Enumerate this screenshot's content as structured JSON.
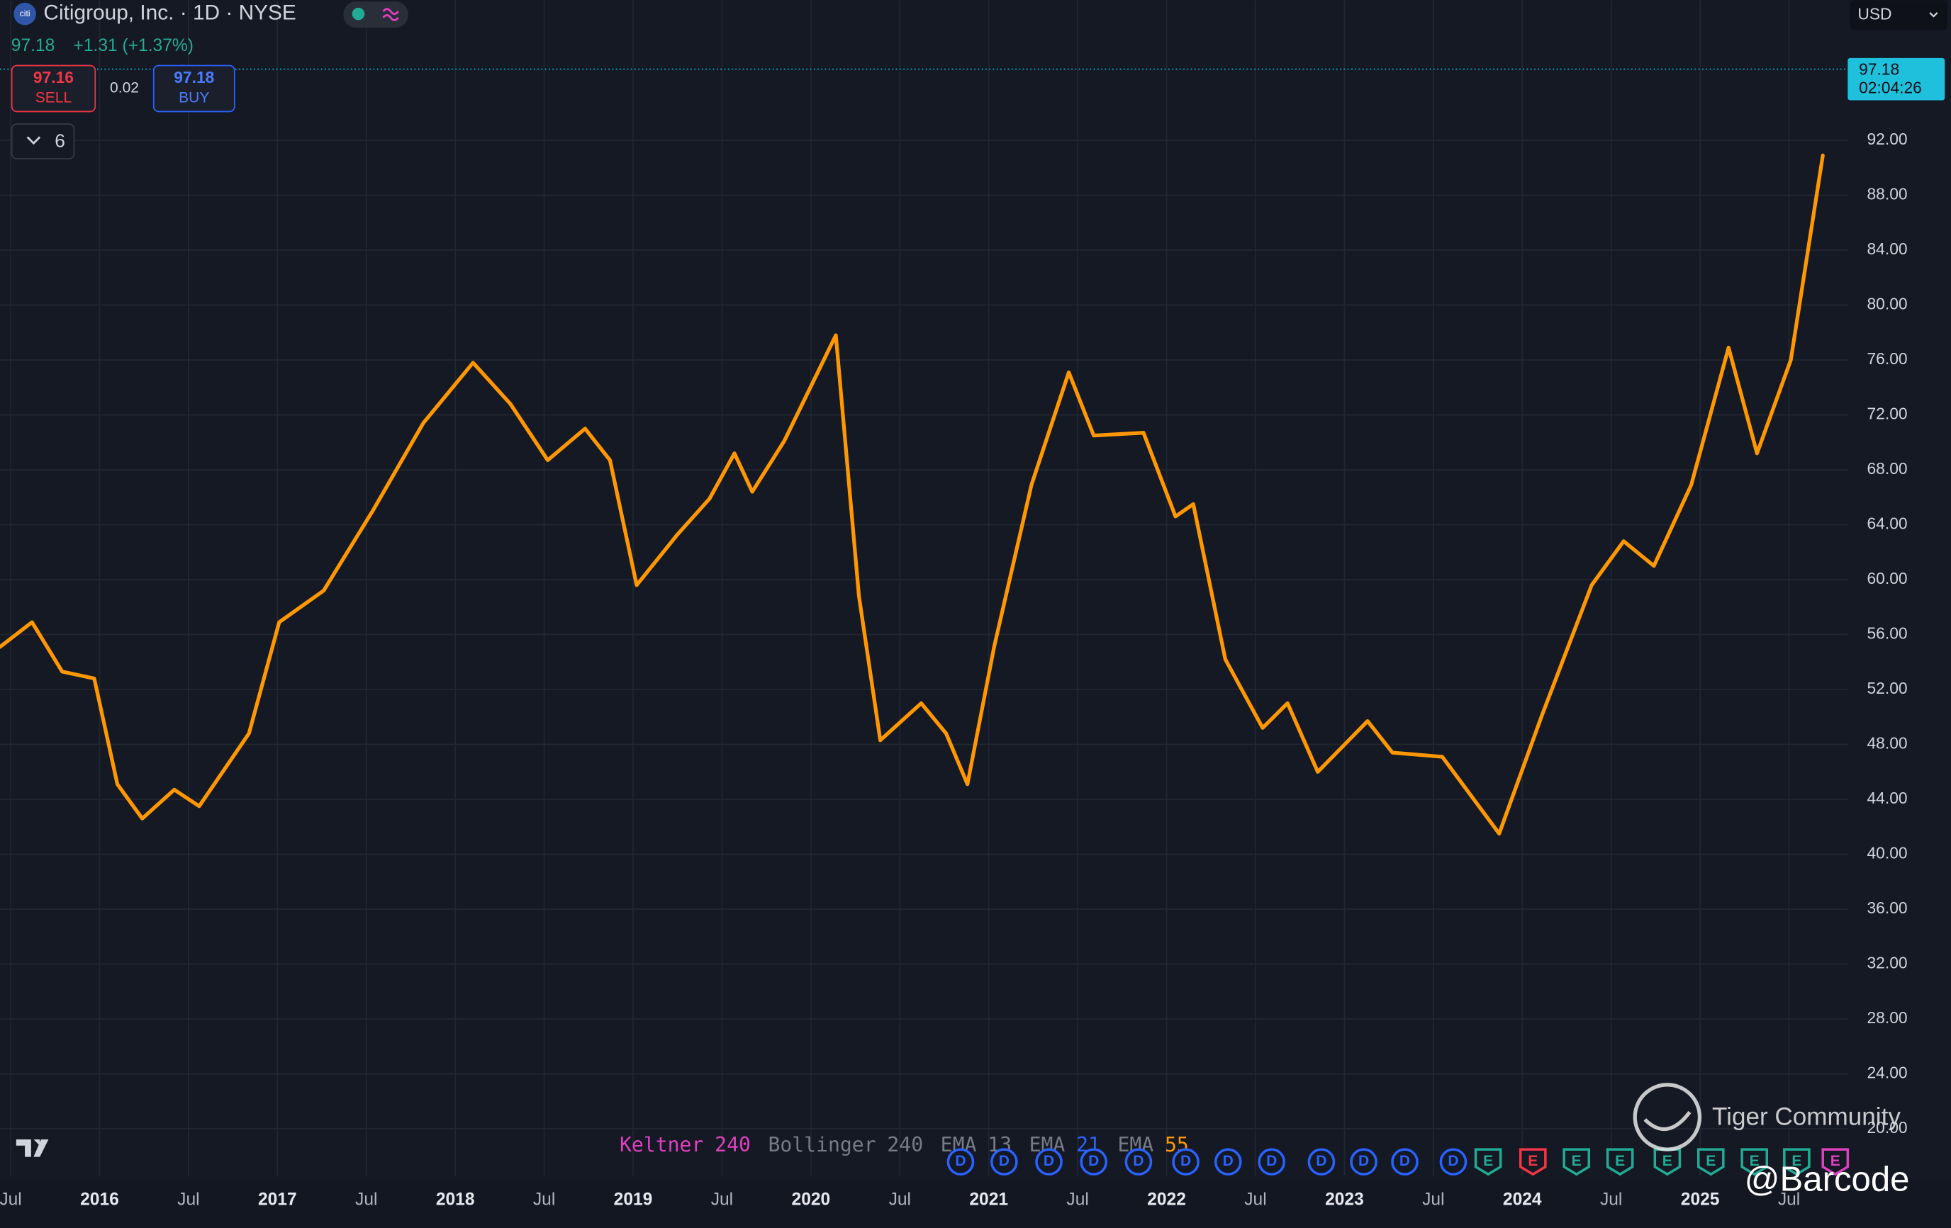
{
  "header": {
    "logo": "citi",
    "symbol": "Citigroup, Inc. · 1D · NYSE",
    "quote": "97.18",
    "change": "+1.31 (+1.37%)",
    "sell_price": "97.16",
    "sell_label": "SELL",
    "spread": "0.02",
    "buy_price": "97.18",
    "buy_label": "BUY",
    "indicator_count": "6",
    "currency": "USD"
  },
  "chart_data": {
    "type": "line",
    "x": [
      2015.44,
      2015.62,
      2015.79,
      2015.97,
      2016.1,
      2016.24,
      2016.42,
      2016.56,
      2016.84,
      2017.01,
      2017.26,
      2017.54,
      2017.82,
      2018.1,
      2018.31,
      2018.52,
      2018.73,
      2018.87,
      2019.02,
      2019.25,
      2019.43,
      2019.57,
      2019.67,
      2019.85,
      2020.14,
      2020.27,
      2020.39,
      2020.62,
      2020.76,
      2020.88,
      2021.03,
      2021.24,
      2021.45,
      2021.59,
      2021.87,
      2022.05,
      2022.15,
      2022.33,
      2022.54,
      2022.68,
      2022.85,
      2023.13,
      2023.27,
      2023.55,
      2023.87,
      2024.11,
      2024.39,
      2024.57,
      2024.74,
      2024.95,
      2025.16,
      2025.32,
      2025.51,
      2025.69
    ],
    "series": [
      {
        "color": "#ff9800",
        "values": [
          55.1,
          56.9,
          53.3,
          52.8,
          45.1,
          42.6,
          44.7,
          43.5,
          48.8,
          56.9,
          59.2,
          65.1,
          71.4,
          75.8,
          72.8,
          68.7,
          71.0,
          68.7,
          59.6,
          63.3,
          65.9,
          69.2,
          66.4,
          70.1,
          77.8,
          58.8,
          48.3,
          51.0,
          48.8,
          45.1,
          55.1,
          66.9,
          75.1,
          70.5,
          70.7,
          64.6,
          65.5,
          54.2,
          49.2,
          51.0,
          46.0,
          49.7,
          47.4,
          47.1,
          41.5,
          50.1,
          59.6,
          62.8,
          61.0,
          66.9,
          76.9,
          69.2,
          76.0,
          90.9
        ]
      }
    ],
    "xlim": [
      2015.44,
      2025.83
    ],
    "ylim": [
      16.6,
      102.2
    ],
    "xticks": [
      {
        "value": 2015.5,
        "label": "Jul"
      },
      2016,
      {
        "value": 2016.5,
        "label": "Jul"
      },
      2017,
      {
        "value": 2017.5,
        "label": "Jul"
      },
      2018,
      {
        "value": 2018.5,
        "label": "Jul"
      },
      2019,
      {
        "value": 2019.5,
        "label": "Jul"
      },
      2020,
      {
        "value": 2020.5,
        "label": "Jul"
      },
      2021,
      {
        "value": 2021.5,
        "label": "Jul"
      },
      2022,
      {
        "value": 2022.5,
        "label": "Jul"
      },
      2023,
      {
        "value": 2023.5,
        "label": "Jul"
      },
      2024,
      {
        "value": 2024.5,
        "label": "Jul"
      },
      2025,
      {
        "value": 2025.5,
        "label": "Jul"
      }
    ],
    "yticks": [
      {
        "value": 20,
        "label": "20.00"
      },
      {
        "value": 24,
        "label": "24.00"
      },
      {
        "value": 28,
        "label": "28.00"
      },
      {
        "value": 32,
        "label": "32.00"
      },
      {
        "value": 36,
        "label": "36.00"
      },
      {
        "value": 40,
        "label": "40.00"
      },
      {
        "value": 44,
        "label": "44.00"
      },
      {
        "value": 48,
        "label": "48.00"
      },
      {
        "value": 52,
        "label": "52.00"
      },
      {
        "value": 56,
        "label": "56.00"
      },
      {
        "value": 60,
        "label": "60.00"
      },
      {
        "value": 64,
        "label": "64.00"
      },
      {
        "value": 68,
        "label": "68.00"
      },
      {
        "value": 72,
        "label": "72.00"
      },
      {
        "value": 76,
        "label": "76.00"
      },
      {
        "value": 80,
        "label": "80.00"
      },
      {
        "value": 84,
        "label": "84.00"
      },
      {
        "value": 88,
        "label": "88.00"
      },
      {
        "value": 92,
        "label": "92.00"
      }
    ],
    "grid": true,
    "last_price": 97.18,
    "countdown": "02:04:26",
    "indicators": [
      {
        "name": "Keltner",
        "length": 240,
        "color": "#e040c0"
      },
      {
        "name": "Bollinger",
        "length": 240,
        "color": "#787b86"
      },
      {
        "name": "EMA",
        "length": 13,
        "color": "#787b86"
      },
      {
        "name": "EMA",
        "length": 21,
        "color": "#2962ff"
      },
      {
        "name": "EMA",
        "length": 55,
        "color": "#ff9800"
      }
    ],
    "events": [
      {
        "label": "D",
        "color": "#2962ff"
      },
      {
        "label": "D",
        "color": "#2962ff"
      },
      {
        "label": "D",
        "color": "#2962ff"
      },
      {
        "label": "D",
        "color": "#2962ff"
      },
      {
        "label": "D",
        "color": "#2962ff"
      },
      {
        "label": "D",
        "color": "#2962ff"
      },
      {
        "label": "D",
        "color": "#2962ff"
      },
      {
        "label": "D",
        "color": "#2962ff"
      },
      {
        "label": "D",
        "color": "#2962ff"
      },
      {
        "label": "D",
        "color": "#2962ff"
      },
      {
        "label": "D",
        "color": "#2962ff"
      },
      {
        "label": "D",
        "color": "#2962ff"
      },
      {
        "label": "E",
        "color": "#22ab94"
      },
      {
        "label": "E",
        "color": "#f23645"
      },
      {
        "label": "E",
        "color": "#22ab94"
      },
      {
        "label": "E",
        "color": "#22ab94"
      },
      {
        "label": "E",
        "color": "#22ab94"
      },
      {
        "label": "E",
        "color": "#22ab94"
      },
      {
        "label": "E",
        "color": "#22ab94"
      },
      {
        "label": "E",
        "color": "#22ab94"
      },
      {
        "label": "E",
        "color": "#e040c0"
      }
    ]
  },
  "watermark": {
    "brand": "Tiger Community",
    "handle": "@Barcode"
  }
}
